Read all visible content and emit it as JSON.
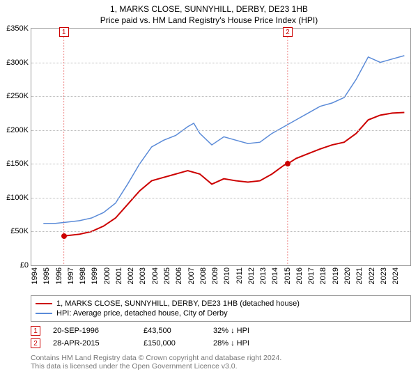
{
  "header": {
    "line1": "1, MARKS CLOSE, SUNNYHILL, DERBY, DE23 1HB",
    "line2": "Price paid vs. HM Land Registry's House Price Index (HPI)"
  },
  "chart": {
    "type": "line",
    "background_color": "#ffffff",
    "grid_color": "#bbbbbb",
    "border_color": "#999999",
    "xlim": [
      1994,
      2025.5
    ],
    "ylim": [
      0,
      350000
    ],
    "ytick_step": 50000,
    "yticks": [
      "£0",
      "£50K",
      "£100K",
      "£150K",
      "£200K",
      "£250K",
      "£300K",
      "£350K"
    ],
    "xticks": [
      1994,
      1995,
      1996,
      1997,
      1998,
      1999,
      2000,
      2001,
      2002,
      2003,
      2004,
      2005,
      2006,
      2007,
      2008,
      2009,
      2010,
      2011,
      2012,
      2013,
      2014,
      2015,
      2016,
      2017,
      2018,
      2019,
      2020,
      2021,
      2022,
      2023,
      2024
    ],
    "label_fontsize": 11,
    "series": [
      {
        "name": "1, MARKS CLOSE, SUNNYHILL, DERBY, DE23 1HB (detached house)",
        "color": "#cc0000",
        "line_width": 2,
        "points": [
          [
            1996.7,
            43500
          ],
          [
            1997,
            44000
          ],
          [
            1998,
            46000
          ],
          [
            1999,
            50000
          ],
          [
            2000,
            58000
          ],
          [
            2001,
            70000
          ],
          [
            2002,
            90000
          ],
          [
            2003,
            110000
          ],
          [
            2004,
            125000
          ],
          [
            2005,
            130000
          ],
          [
            2006,
            135000
          ],
          [
            2007,
            140000
          ],
          [
            2008,
            135000
          ],
          [
            2009,
            120000
          ],
          [
            2010,
            128000
          ],
          [
            2011,
            125000
          ],
          [
            2012,
            123000
          ],
          [
            2013,
            125000
          ],
          [
            2014,
            135000
          ],
          [
            2015,
            148000
          ],
          [
            2015.3,
            150000
          ],
          [
            2016,
            158000
          ],
          [
            2017,
            165000
          ],
          [
            2018,
            172000
          ],
          [
            2019,
            178000
          ],
          [
            2020,
            182000
          ],
          [
            2021,
            195000
          ],
          [
            2022,
            215000
          ],
          [
            2023,
            222000
          ],
          [
            2024,
            225000
          ],
          [
            2025,
            226000
          ]
        ]
      },
      {
        "name": "HPI: Average price, detached house, City of Derby",
        "color": "#5b8bd8",
        "line_width": 1.5,
        "points": [
          [
            1995,
            62000
          ],
          [
            1996,
            62000
          ],
          [
            1997,
            64000
          ],
          [
            1998,
            66000
          ],
          [
            1999,
            70000
          ],
          [
            2000,
            78000
          ],
          [
            2001,
            92000
          ],
          [
            2002,
            120000
          ],
          [
            2003,
            150000
          ],
          [
            2004,
            175000
          ],
          [
            2005,
            185000
          ],
          [
            2006,
            192000
          ],
          [
            2007,
            205000
          ],
          [
            2007.5,
            210000
          ],
          [
            2008,
            195000
          ],
          [
            2009,
            178000
          ],
          [
            2010,
            190000
          ],
          [
            2011,
            185000
          ],
          [
            2012,
            180000
          ],
          [
            2013,
            182000
          ],
          [
            2014,
            195000
          ],
          [
            2015,
            205000
          ],
          [
            2016,
            215000
          ],
          [
            2017,
            225000
          ],
          [
            2018,
            235000
          ],
          [
            2019,
            240000
          ],
          [
            2020,
            248000
          ],
          [
            2021,
            275000
          ],
          [
            2022,
            308000
          ],
          [
            2023,
            300000
          ],
          [
            2024,
            305000
          ],
          [
            2025,
            310000
          ]
        ]
      }
    ],
    "markers": [
      {
        "n": "1",
        "x": 1996.7,
        "y": 43500
      },
      {
        "n": "2",
        "x": 2015.3,
        "y": 150000
      }
    ]
  },
  "legend": {
    "rows": [
      {
        "label": "1, MARKS CLOSE, SUNNYHILL, DERBY, DE23 1HB (detached house)",
        "color": "#cc0000"
      },
      {
        "label": "HPI: Average price, detached house, City of Derby",
        "color": "#5b8bd8"
      }
    ]
  },
  "datapoints": [
    {
      "n": "1",
      "date": "20-SEP-1996",
      "price": "£43,500",
      "delta": "32% ↓ HPI"
    },
    {
      "n": "2",
      "date": "28-APR-2015",
      "price": "£150,000",
      "delta": "28% ↓ HPI"
    }
  ],
  "credits": {
    "line1": "Contains HM Land Registry data © Crown copyright and database right 2024.",
    "line2": "This data is licensed under the Open Government Licence v3.0."
  }
}
